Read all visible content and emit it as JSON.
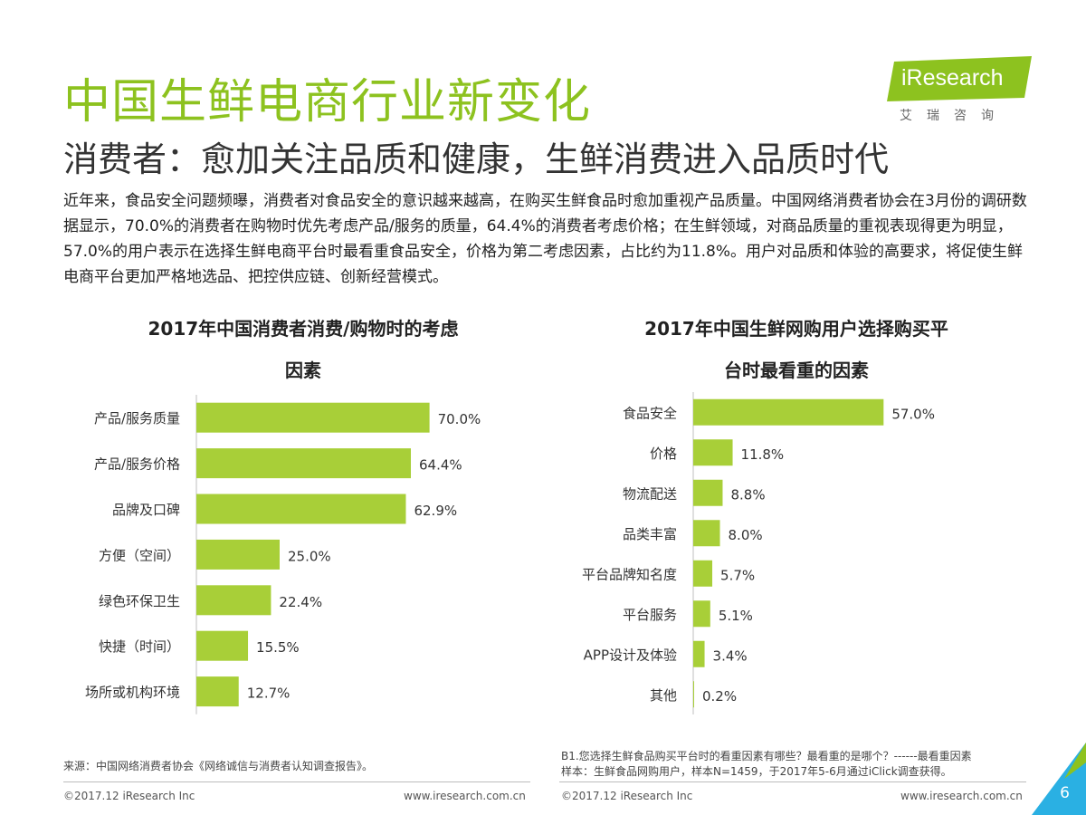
{
  "header": {
    "title": "中国生鲜电商行业新变化",
    "subtitle": "消费者：愈加关注品质和健康，生鲜消费进入品质时代"
  },
  "logo": {
    "brand": "iResearch",
    "cn": "艾瑞咨询",
    "color": "#8dc21f"
  },
  "intro": "近年来，食品安全问题频曝，消费者对食品安全的意识越来越高，在购买生鲜食品时愈加重视产品质量。中国网络消费者协会在3月份的调研数据显示，70.0%的消费者在购物时优先考虑产品/服务的质量，64.4%的消费者考虑价格；在生鲜领域，对商品质量的重视表现得更为明显，57.0%的用户表示在选择生鲜电商平台时最看重食品安全，价格为第二考虑因素，占比约为11.8%。用户对品质和体验的高要求，将促使生鲜电商平台更加严格地选品、把控供应链、创新经营模式。",
  "chart_data": [
    {
      "type": "bar",
      "orientation": "horizontal",
      "title": "2017年中国消费者消费/购物时的考虑因素",
      "title_lines": [
        "2017年中国消费者消费/购物时的考虑",
        "因素"
      ],
      "categories": [
        "产品/服务质量",
        "产品/服务价格",
        "品牌及口碑",
        "方便（空间）",
        "绿色环保卫生",
        "快捷（时间）",
        "场所或机构环境"
      ],
      "values": [
        70.0,
        64.4,
        62.9,
        25.0,
        22.4,
        15.5,
        12.7
      ],
      "labels": [
        "70.0%",
        "64.4%",
        "62.9%",
        "25.0%",
        "22.4%",
        "15.5%",
        "12.7%"
      ],
      "xlim": [
        0,
        100
      ],
      "color": "#a8cf38"
    },
    {
      "type": "bar",
      "orientation": "horizontal",
      "title": "2017年中国生鲜网购用户选择购买平台时最看重的因素",
      "title_lines": [
        "2017年中国生鲜网购用户选择购买平",
        "台时最看重的因素"
      ],
      "categories": [
        "食品安全",
        "价格",
        "物流配送",
        "品类丰富",
        "平台品牌知名度",
        "平台服务",
        "APP设计及体验",
        "其他"
      ],
      "values": [
        57.0,
        11.8,
        8.8,
        8.0,
        5.7,
        5.1,
        3.4,
        0.2
      ],
      "labels": [
        "57.0%",
        "11.8%",
        "8.8%",
        "8.0%",
        "5.7%",
        "5.1%",
        "3.4%",
        "0.2%"
      ],
      "xlim": [
        0,
        100
      ],
      "color": "#a8cf38"
    }
  ],
  "notes": {
    "left_source": "来源：中国网络消费者协会《网络诚信与消费者认知调查报告》。",
    "right_line1": "B1.您选择生鲜食品购买平台时的看重因素有哪些？最看重的是哪个？------最看重因素",
    "right_line2": "样本：生鲜食品网购用户，样本N=1459，于2017年5-6月通过iClick调查获得。"
  },
  "footer": {
    "left_copy": "©2017.12 iResearch Inc",
    "left_url": "www.iresearch.com.cn",
    "right_copy": "©2017.12 iResearch Inc",
    "right_url": "www.iresearch.com.cn",
    "page": "6"
  },
  "colors": {
    "accent": "#8dc21f",
    "bar": "#a8cf38",
    "corner": "#2ab0e3"
  }
}
